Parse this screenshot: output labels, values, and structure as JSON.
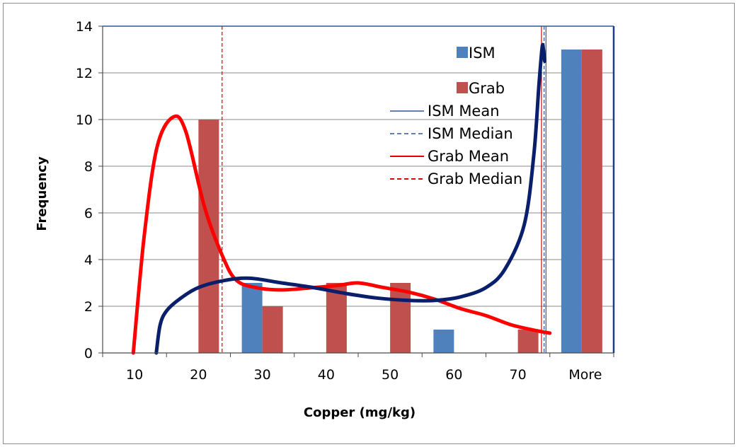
{
  "chart_data": {
    "type": "bar",
    "xlabel": "Copper (mg/kg)",
    "ylabel": "Frequency",
    "categories": [
      "10",
      "20",
      "30",
      "40",
      "50",
      "60",
      "70",
      "More"
    ],
    "ylim": [
      0,
      14
    ],
    "yticks": [
      0,
      2,
      4,
      6,
      8,
      10,
      12,
      14
    ],
    "grid": true,
    "legend_position": "top-right",
    "series": [
      {
        "name": "ISM",
        "color": "#4f81bd",
        "values": [
          0,
          0,
          3,
          0,
          0,
          1,
          0,
          13
        ]
      },
      {
        "name": "Grab",
        "color": "#c0504d",
        "values": [
          0,
          10,
          2,
          3,
          3,
          0,
          1,
          13
        ]
      }
    ],
    "lines": [
      {
        "name": "ISM Mean",
        "color": "#2e5597",
        "style": "solid",
        "x": 79.4
      },
      {
        "name": "ISM Median",
        "color": "#2e5597",
        "style": "dashed",
        "x": 79.1
      },
      {
        "name": "Grab Mean",
        "color": "#e00000",
        "style": "solid",
        "x": 78.7
      },
      {
        "name": "Grab Median",
        "color": "#e00000",
        "style": "dashed",
        "x": 28.7
      }
    ],
    "curves": [
      {
        "series": "Grab",
        "color": "#ff0000",
        "points": [
          [
            14.8,
            0
          ],
          [
            16.5,
            5
          ],
          [
            18.5,
            8.8
          ],
          [
            21,
            10.1
          ],
          [
            23,
            9.5
          ],
          [
            26,
            6.2
          ],
          [
            29,
            4.0
          ],
          [
            31,
            3.1
          ],
          [
            34,
            2.8
          ],
          [
            38,
            2.7
          ],
          [
            43,
            2.8
          ],
          [
            47,
            2.9
          ],
          [
            50,
            3.0
          ],
          [
            54,
            2.8
          ],
          [
            58,
            2.6
          ],
          [
            62,
            2.3
          ],
          [
            66,
            1.9
          ],
          [
            70,
            1.6
          ],
          [
            74,
            1.2
          ],
          [
            78,
            0.95
          ],
          [
            80,
            0.85
          ]
        ]
      },
      {
        "series": "ISM",
        "color": "#0a1f6b",
        "points": [
          [
            18.4,
            0
          ],
          [
            19,
            1.2
          ],
          [
            20,
            1.8
          ],
          [
            22,
            2.3
          ],
          [
            25,
            2.8
          ],
          [
            29,
            3.1
          ],
          [
            33,
            3.2
          ],
          [
            38,
            3.0
          ],
          [
            43,
            2.8
          ],
          [
            48,
            2.55
          ],
          [
            53,
            2.35
          ],
          [
            58,
            2.25
          ],
          [
            62,
            2.25
          ],
          [
            66,
            2.4
          ],
          [
            70,
            2.8
          ],
          [
            73,
            3.6
          ],
          [
            76,
            5.5
          ],
          [
            77.5,
            8.5
          ],
          [
            78.3,
            11.5
          ],
          [
            78.8,
            13.1
          ],
          [
            79,
            13.0
          ],
          [
            79.2,
            12.5
          ]
        ]
      }
    ]
  }
}
